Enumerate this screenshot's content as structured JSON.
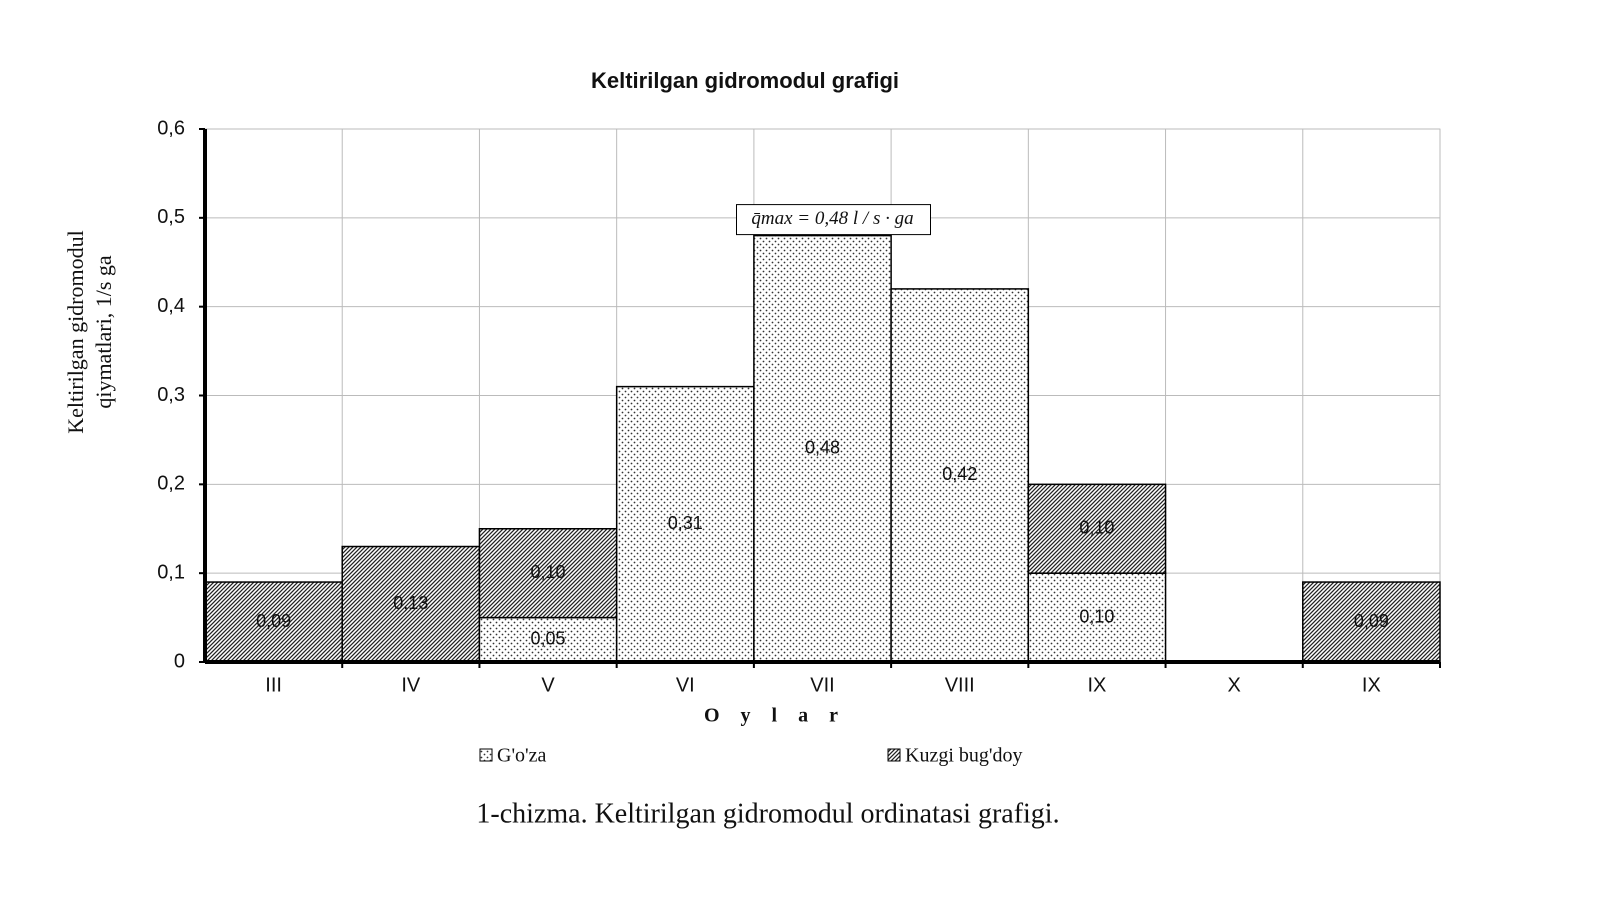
{
  "chart_data": {
    "type": "stacked-bar",
    "title": "Keltirilgan gidromodul grafigi",
    "x_label": "O y l a r",
    "y_label": [
      "Keltirilgan gidromodul",
      "qiymatlari, 1/s ga"
    ],
    "caption": "1-chizma. Keltirilgan gidromodul ordinatasi grafigi.",
    "annotation": "q̄max = 0,48 l / s · ga",
    "categories": [
      "III",
      "IV",
      "V",
      "VI",
      "VII",
      "VIII",
      "IX",
      "X",
      "IX"
    ],
    "series": [
      {
        "name": "G'o'za",
        "color": "#000000",
        "pattern": "dots",
        "values": [
          null,
          null,
          0.05,
          0.31,
          0.48,
          0.42,
          0.1,
          null,
          null
        ],
        "value_labels": [
          null,
          null,
          "0,05",
          "0,31",
          "0,48",
          "0,42",
          "0,10",
          null,
          null
        ]
      },
      {
        "name": "Kuzgi bug'doy",
        "color": "#000000",
        "pattern": "hatch",
        "values": [
          0.09,
          0.13,
          0.1,
          null,
          null,
          null,
          0.1,
          null,
          0.09
        ],
        "value_labels": [
          "0,09",
          "0,13",
          "0,10",
          null,
          null,
          null,
          "0,10",
          null,
          "0,09"
        ]
      }
    ],
    "ylim": [
      0,
      0.6
    ],
    "yticks": [
      0,
      {
        "value": 0.1,
        "label": "0,1"
      },
      {
        "value": 0.2,
        "label": "0,2"
      },
      {
        "value": 0.3,
        "label": "0,3"
      },
      {
        "value": 0.4,
        "label": "0,4"
      },
      {
        "value": 0.5,
        "label": "0,5"
      },
      {
        "value": 0.6,
        "label": "0,6"
      }
    ],
    "grid": true,
    "legend": "bottom"
  }
}
